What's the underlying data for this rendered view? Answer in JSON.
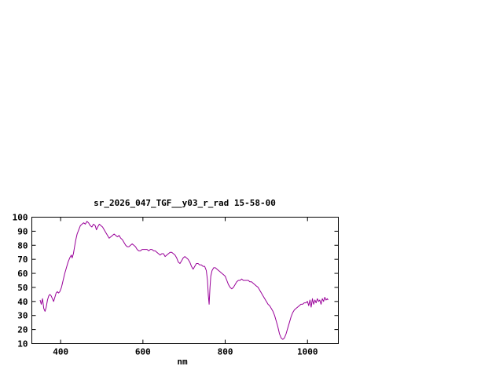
{
  "chart_data": {
    "type": "line",
    "title": "sr_2026_047_TGF__y03_r_rad 15-58-00",
    "xlabel": "nm",
    "ylabel": "",
    "xlim": [
      330,
      1075
    ],
    "ylim": [
      10,
      100
    ],
    "x_ticks": [
      400,
      600,
      800,
      1000
    ],
    "y_ticks": [
      10,
      20,
      30,
      40,
      50,
      60,
      70,
      80,
      90,
      100
    ],
    "grid": false,
    "legend_position": "none",
    "line_color": "#990099",
    "axis_color": "#000000",
    "background_color": "#ffffff",
    "series": [
      {
        "name": "sr_2026_047_TGF__y03_r_rad",
        "points": [
          [
            350,
            41
          ],
          [
            353,
            38
          ],
          [
            356,
            42
          ],
          [
            359,
            35
          ],
          [
            362,
            33
          ],
          [
            365,
            36
          ],
          [
            368,
            41
          ],
          [
            371,
            44
          ],
          [
            374,
            45
          ],
          [
            377,
            44
          ],
          [
            380,
            42
          ],
          [
            383,
            40
          ],
          [
            386,
            43
          ],
          [
            389,
            46
          ],
          [
            392,
            47
          ],
          [
            395,
            46
          ],
          [
            398,
            47
          ],
          [
            402,
            50
          ],
          [
            406,
            55
          ],
          [
            410,
            60
          ],
          [
            414,
            64
          ],
          [
            418,
            68
          ],
          [
            422,
            71
          ],
          [
            426,
            73
          ],
          [
            428,
            71
          ],
          [
            431,
            74
          ],
          [
            434,
            79
          ],
          [
            437,
            84
          ],
          [
            440,
            88
          ],
          [
            444,
            91
          ],
          [
            448,
            94
          ],
          [
            452,
            95
          ],
          [
            456,
            96
          ],
          [
            460,
            95
          ],
          [
            464,
            97
          ],
          [
            468,
            96
          ],
          [
            472,
            94
          ],
          [
            476,
            93
          ],
          [
            480,
            95
          ],
          [
            484,
            94
          ],
          [
            487,
            91
          ],
          [
            490,
            93
          ],
          [
            494,
            95
          ],
          [
            498,
            94
          ],
          [
            502,
            93
          ],
          [
            506,
            91
          ],
          [
            510,
            89
          ],
          [
            514,
            87
          ],
          [
            518,
            85
          ],
          [
            522,
            86
          ],
          [
            526,
            87
          ],
          [
            530,
            88
          ],
          [
            534,
            87
          ],
          [
            538,
            86
          ],
          [
            542,
            87
          ],
          [
            546,
            85
          ],
          [
            550,
            84
          ],
          [
            554,
            82
          ],
          [
            558,
            80
          ],
          [
            562,
            79
          ],
          [
            566,
            79
          ],
          [
            570,
            80
          ],
          [
            574,
            81
          ],
          [
            578,
            80
          ],
          [
            582,
            79
          ],
          [
            586,
            77
          ],
          [
            590,
            76
          ],
          [
            594,
            76
          ],
          [
            598,
            77
          ],
          [
            602,
            77
          ],
          [
            606,
            77
          ],
          [
            610,
            77
          ],
          [
            614,
            76
          ],
          [
            618,
            77
          ],
          [
            622,
            77
          ],
          [
            626,
            76
          ],
          [
            630,
            76
          ],
          [
            634,
            75
          ],
          [
            638,
            74
          ],
          [
            642,
            73
          ],
          [
            646,
            74
          ],
          [
            650,
            74
          ],
          [
            654,
            72
          ],
          [
            658,
            73
          ],
          [
            662,
            74
          ],
          [
            666,
            75
          ],
          [
            670,
            75
          ],
          [
            674,
            74
          ],
          [
            678,
            73
          ],
          [
            682,
            71
          ],
          [
            686,
            68
          ],
          [
            690,
            67
          ],
          [
            694,
            69
          ],
          [
            698,
            71
          ],
          [
            702,
            72
          ],
          [
            706,
            71
          ],
          [
            710,
            70
          ],
          [
            714,
            68
          ],
          [
            718,
            65
          ],
          [
            722,
            63
          ],
          [
            726,
            65
          ],
          [
            730,
            67
          ],
          [
            734,
            67
          ],
          [
            738,
            66
          ],
          [
            742,
            66
          ],
          [
            746,
            65
          ],
          [
            750,
            65
          ],
          [
            754,
            62
          ],
          [
            757,
            55
          ],
          [
            759,
            44
          ],
          [
            761,
            38
          ],
          [
            763,
            50
          ],
          [
            765,
            58
          ],
          [
            768,
            62
          ],
          [
            772,
            64
          ],
          [
            776,
            64
          ],
          [
            780,
            63
          ],
          [
            784,
            62
          ],
          [
            788,
            61
          ],
          [
            792,
            60
          ],
          [
            796,
            59
          ],
          [
            800,
            58
          ],
          [
            804,
            55
          ],
          [
            808,
            52
          ],
          [
            812,
            50
          ],
          [
            816,
            49
          ],
          [
            820,
            50
          ],
          [
            824,
            52
          ],
          [
            828,
            54
          ],
          [
            832,
            55
          ],
          [
            836,
            55
          ],
          [
            840,
            56
          ],
          [
            844,
            55
          ],
          [
            848,
            55
          ],
          [
            852,
            55
          ],
          [
            856,
            55
          ],
          [
            860,
            54
          ],
          [
            864,
            54
          ],
          [
            868,
            53
          ],
          [
            872,
            52
          ],
          [
            876,
            51
          ],
          [
            880,
            50
          ],
          [
            884,
            48
          ],
          [
            888,
            46
          ],
          [
            892,
            44
          ],
          [
            896,
            42
          ],
          [
            900,
            40
          ],
          [
            904,
            38
          ],
          [
            908,
            37
          ],
          [
            912,
            35
          ],
          [
            916,
            33
          ],
          [
            920,
            30
          ],
          [
            924,
            26
          ],
          [
            928,
            22
          ],
          [
            932,
            17
          ],
          [
            936,
            14
          ],
          [
            940,
            13
          ],
          [
            944,
            14
          ],
          [
            948,
            17
          ],
          [
            952,
            21
          ],
          [
            956,
            25
          ],
          [
            960,
            29
          ],
          [
            964,
            32
          ],
          [
            968,
            34
          ],
          [
            972,
            35
          ],
          [
            976,
            36
          ],
          [
            980,
            37
          ],
          [
            984,
            38
          ],
          [
            988,
            38
          ],
          [
            992,
            39
          ],
          [
            996,
            39
          ],
          [
            1000,
            40
          ],
          [
            1003,
            37
          ],
          [
            1006,
            41
          ],
          [
            1009,
            36
          ],
          [
            1012,
            42
          ],
          [
            1015,
            38
          ],
          [
            1018,
            41
          ],
          [
            1021,
            39
          ],
          [
            1024,
            42
          ],
          [
            1027,
            40
          ],
          [
            1030,
            41
          ],
          [
            1033,
            38
          ],
          [
            1036,
            42
          ],
          [
            1039,
            40
          ],
          [
            1042,
            43
          ],
          [
            1045,
            41
          ],
          [
            1048,
            42
          ],
          [
            1050,
            41
          ]
        ]
      }
    ]
  }
}
